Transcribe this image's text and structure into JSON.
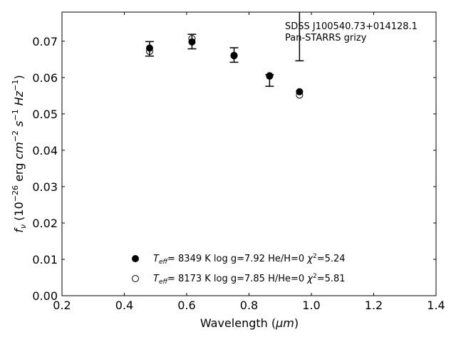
{
  "chart_data": {
    "type": "scatter",
    "xlabel_main": "Wavelength (",
    "xlabel_unit": "μm",
    "xlabel_close": ")",
    "ylabel_parts": [
      "f",
      "ν",
      " (10",
      "−26",
      " erg ",
      "cm",
      "−2",
      " ",
      "s",
      "−1",
      " ",
      "Hz",
      "−1",
      ")"
    ],
    "xlim": [
      0.2,
      1.4
    ],
    "ylim": [
      0.0,
      0.078
    ],
    "xticks": [
      "0.2",
      "0.4",
      "0.6",
      "0.8",
      "1.0",
      "1.2",
      "1.4"
    ],
    "xtick_values": [
      0.2,
      0.4,
      0.6,
      0.8,
      1.0,
      1.2,
      1.4
    ],
    "yticks": [
      "0.00",
      "0.01",
      "0.02",
      "0.03",
      "0.04",
      "0.05",
      "0.06",
      "0.07"
    ],
    "ytick_values": [
      0.0,
      0.01,
      0.02,
      0.03,
      0.04,
      0.05,
      0.06,
      0.07
    ],
    "annotation_lines": [
      "SDSS J100540.73+014128.1",
      "Pan-STARRS grizy"
    ],
    "observed": {
      "x": [
        0.481,
        0.617,
        0.752,
        0.866,
        0.962
      ],
      "y": [
        0.0679,
        0.0699,
        0.0662,
        0.0592,
        0.0777
      ],
      "yerr_low": [
        0.002,
        0.002,
        0.002,
        0.0016,
        0.0131
      ],
      "yerr_high": [
        0.002,
        0.002,
        0.002,
        0.0016,
        0.0131
      ]
    },
    "series": [
      {
        "marker": "filled",
        "x": [
          0.481,
          0.617,
          0.752,
          0.866,
          0.962
        ],
        "y": [
          0.0681,
          0.0698,
          0.0661,
          0.0604,
          0.0561
        ],
        "legend_teff_label": "T",
        "legend_teff_sub": "eff",
        "legend_text": "=  8349 K  log g=7.92  He/H=0  ",
        "legend_chi": "χ",
        "legend_chi_sup": "2",
        "legend_chi_val": "=5.24"
      },
      {
        "marker": "open",
        "x": [
          0.481,
          0.617,
          0.752,
          0.866,
          0.962
        ],
        "y": [
          0.0672,
          0.0707,
          0.066,
          0.0605,
          0.0552
        ],
        "legend_teff_label": "T",
        "legend_teff_sub": "eff",
        "legend_text": "=  8173 K  log g=7.85  H/He=0  ",
        "legend_chi": "χ",
        "legend_chi_sup": "2",
        "legend_chi_val": "=5.81"
      }
    ],
    "legend_placement": "lower-center",
    "grid": false
  }
}
